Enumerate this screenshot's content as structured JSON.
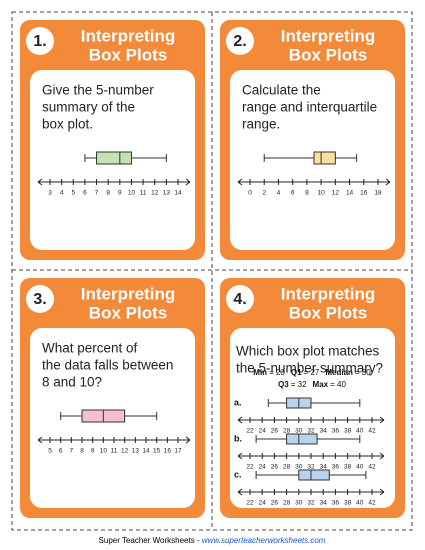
{
  "cards": [
    {
      "number": "1.",
      "title": [
        "Interpreting",
        "Box Plots"
      ],
      "question": [
        "Give the 5-number",
        "summary of the",
        "box plot."
      ],
      "plots": [
        {
          "ticks": [
            3,
            4,
            5,
            6,
            7,
            8,
            9,
            10,
            11,
            12,
            13,
            14
          ],
          "box": [
            6,
            7,
            9,
            10,
            13
          ],
          "color": "#c6e2b0"
        }
      ]
    },
    {
      "number": "2.",
      "title": [
        "Interpreting",
        "Box Plots"
      ],
      "question": [
        "Calculate the",
        "range and interquartile",
        "range."
      ],
      "plots": [
        {
          "ticks": [
            0,
            2,
            4,
            6,
            8,
            10,
            12,
            14,
            16,
            18
          ],
          "box": [
            2,
            9,
            10,
            12,
            15
          ],
          "color": "#f8e0a0"
        }
      ]
    },
    {
      "number": "3.",
      "title": [
        "Interpreting",
        "Box Plots"
      ],
      "question": [
        "What percent of",
        "the data falls between",
        "8 and 10?"
      ],
      "plots": [
        {
          "ticks": [
            5,
            6,
            7,
            8,
            9,
            10,
            11,
            12,
            13,
            14,
            15,
            16,
            17
          ],
          "box": [
            6,
            8,
            10,
            12,
            15
          ],
          "color": "#f4c0d0"
        }
      ]
    },
    {
      "number": "4.",
      "title": [
        "Interpreting",
        "Box Plots"
      ],
      "question": [
        "Which box plot matches",
        "the 5-number summary?"
      ],
      "summary": [
        [
          {
            "label": "Min",
            "value": "= 23"
          },
          {
            "label": "Q1",
            "value": "= 27"
          },
          {
            "label": "Median",
            "value": "= 30"
          }
        ],
        [
          {
            "label": "Q3",
            "value": "= 32"
          },
          {
            "label": "Max",
            "value": "= 40"
          }
        ]
      ],
      "plots": [
        {
          "option": "a.",
          "ticks": [
            22,
            24,
            26,
            28,
            30,
            32,
            34,
            36,
            38,
            40,
            42
          ],
          "box": [
            25,
            28,
            30,
            32,
            40
          ],
          "color": "#b8d4ec"
        },
        {
          "option": "b.",
          "ticks": [
            22,
            24,
            26,
            28,
            30,
            32,
            34,
            36,
            38,
            40,
            42
          ],
          "box": [
            23,
            28,
            30,
            33,
            40
          ],
          "color": "#b8d4ec"
        },
        {
          "option": "c.",
          "ticks": [
            22,
            24,
            26,
            28,
            30,
            32,
            34,
            36,
            38,
            40,
            42
          ],
          "box": [
            23,
            30,
            32,
            35,
            41
          ],
          "color": "#b8d4ec"
        }
      ]
    }
  ],
  "footer": {
    "text": "Super Teacher Worksheets - ",
    "link": "www.superteacherworksheets.com"
  }
}
